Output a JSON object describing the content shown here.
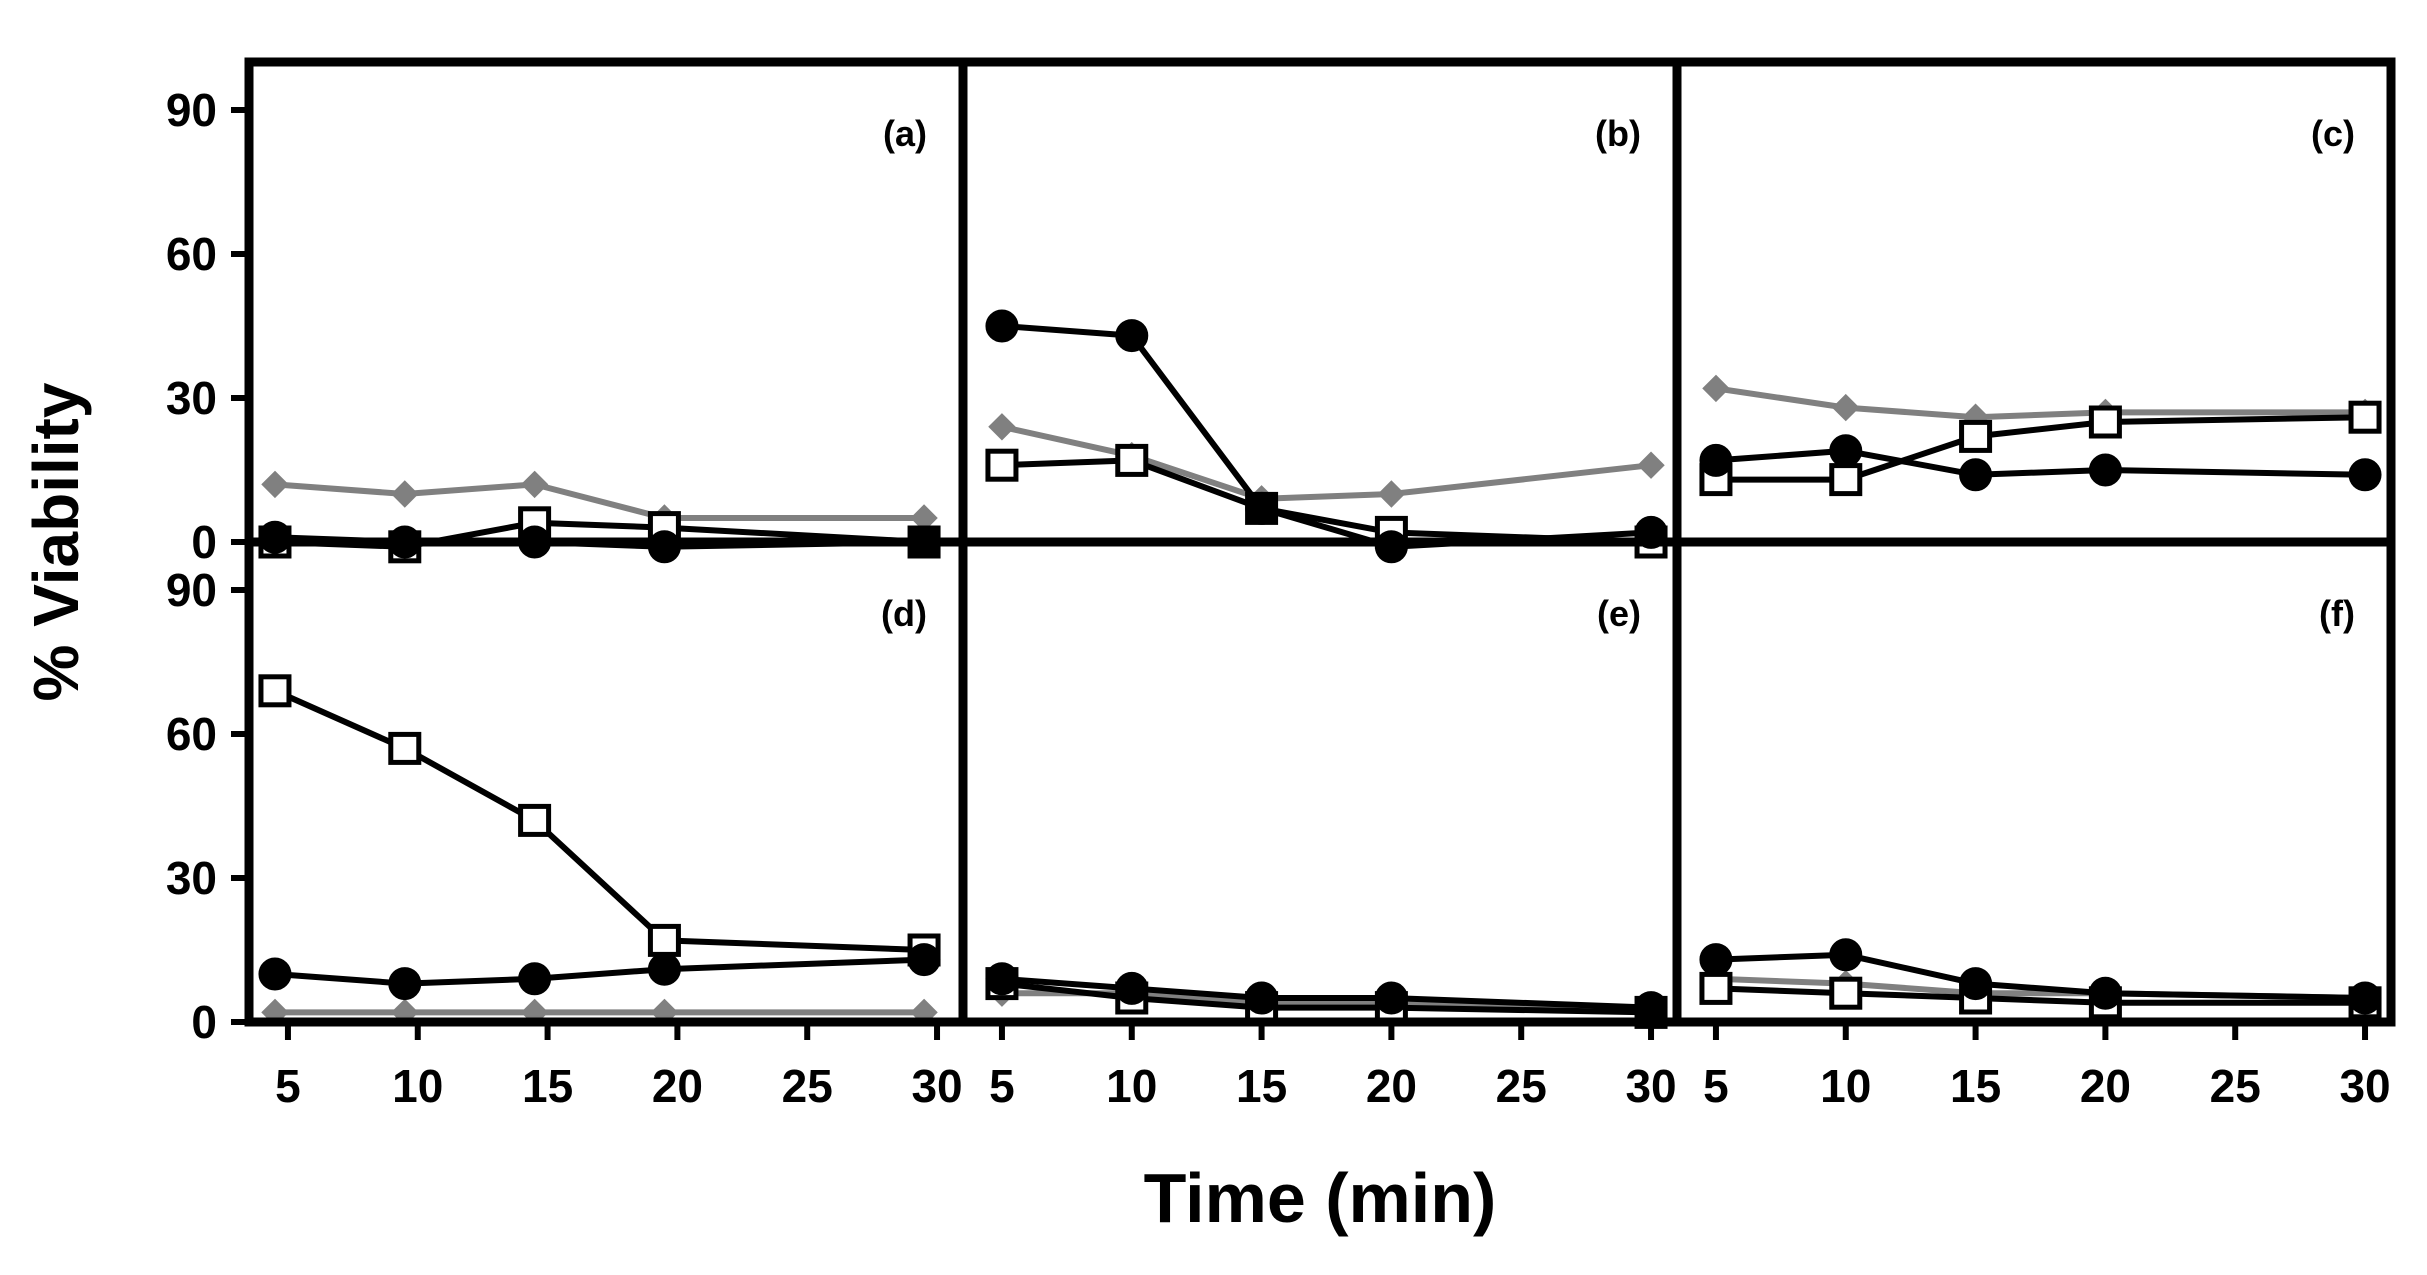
{
  "chart_data": {
    "type": "line",
    "figure": {
      "ylabel": "% Viability",
      "xlabel": "Time (min)",
      "ylim": [
        0,
        100
      ],
      "yticks": [
        0,
        30,
        60,
        90
      ],
      "xlim": [
        3.5,
        31
      ],
      "xticks": [
        5,
        10,
        15,
        20,
        25,
        30
      ],
      "series_styles": {
        "gray_diamond": {
          "color": "#808080",
          "marker": "diamond",
          "fill": "#808080"
        },
        "open_square": {
          "color": "#000000",
          "marker": "square",
          "fill": "#ffffff"
        },
        "filled_circle": {
          "color": "#000000",
          "marker": "circle",
          "fill": "#000000"
        }
      }
    },
    "panels": [
      {
        "label": "(a)",
        "series": [
          {
            "name": "gray_diamond",
            "x": [
              4.5,
              9.5,
              14.5,
              19.5,
              29.5
            ],
            "values": [
              12,
              10,
              12,
              5,
              5
            ]
          },
          {
            "name": "open_square",
            "x": [
              4.5,
              9.5,
              14.5,
              19.5,
              29.5
            ],
            "values": [
              0,
              -1,
              4,
              3,
              0
            ]
          },
          {
            "name": "filled_circle",
            "x": [
              4.5,
              9.5,
              14.5,
              19.5,
              29.5
            ],
            "values": [
              1,
              0,
              0,
              -1,
              0
            ]
          }
        ]
      },
      {
        "label": "(b)",
        "series": [
          {
            "name": "gray_diamond",
            "x": [
              5,
              10,
              15,
              20,
              30
            ],
            "values": [
              24,
              18,
              9,
              10,
              16
            ]
          },
          {
            "name": "open_square",
            "x": [
              5,
              10,
              15,
              20,
              30
            ],
            "values": [
              16,
              17,
              7,
              2,
              0
            ]
          },
          {
            "name": "filled_circle",
            "x": [
              5,
              10,
              15,
              20,
              30
            ],
            "values": [
              45,
              43,
              7,
              -1,
              2
            ]
          }
        ]
      },
      {
        "label": "(c)",
        "series": [
          {
            "name": "gray_diamond",
            "x": [
              5,
              10,
              15,
              20,
              30
            ],
            "values": [
              32,
              28,
              26,
              27,
              27
            ]
          },
          {
            "name": "open_square",
            "x": [
              5,
              10,
              15,
              20,
              30
            ],
            "values": [
              13,
              13,
              22,
              25,
              26
            ]
          },
          {
            "name": "filled_circle",
            "x": [
              5,
              10,
              15,
              20,
              30
            ],
            "values": [
              17,
              19,
              14,
              15,
              14
            ]
          }
        ]
      },
      {
        "label": "(d)",
        "series": [
          {
            "name": "gray_diamond",
            "x": [
              4.5,
              9.5,
              14.5,
              19.5,
              29.5
            ],
            "values": [
              2,
              2,
              2,
              2,
              2
            ]
          },
          {
            "name": "open_square",
            "x": [
              4.5,
              9.5,
              14.5,
              19.5,
              29.5
            ],
            "values": [
              69,
              57,
              42,
              17,
              15
            ]
          },
          {
            "name": "filled_circle",
            "x": [
              4.5,
              9.5,
              14.5,
              19.5,
              29.5
            ],
            "values": [
              10,
              8,
              9,
              11,
              13
            ]
          }
        ]
      },
      {
        "label": "(e)",
        "series": [
          {
            "name": "gray_diamond",
            "x": [
              5,
              10,
              15,
              20,
              30
            ],
            "values": [
              6,
              6,
              4,
              4,
              3
            ]
          },
          {
            "name": "open_square",
            "x": [
              5,
              10,
              15,
              20,
              30
            ],
            "values": [
              8,
              5,
              3,
              3,
              2
            ]
          },
          {
            "name": "filled_circle",
            "x": [
              5,
              10,
              15,
              20,
              30
            ],
            "values": [
              9,
              7,
              5,
              5,
              3
            ]
          }
        ]
      },
      {
        "label": "(f)",
        "series": [
          {
            "name": "gray_diamond",
            "x": [
              5,
              10,
              15,
              20,
              30
            ],
            "values": [
              9,
              8,
              6,
              6,
              5
            ]
          },
          {
            "name": "open_square",
            "x": [
              5,
              10,
              15,
              20,
              30
            ],
            "values": [
              7,
              6,
              5,
              4,
              4
            ]
          },
          {
            "name": "filled_circle",
            "x": [
              5,
              10,
              15,
              20,
              30
            ],
            "values": [
              13,
              14,
              8,
              6,
              5
            ]
          }
        ]
      }
    ]
  }
}
